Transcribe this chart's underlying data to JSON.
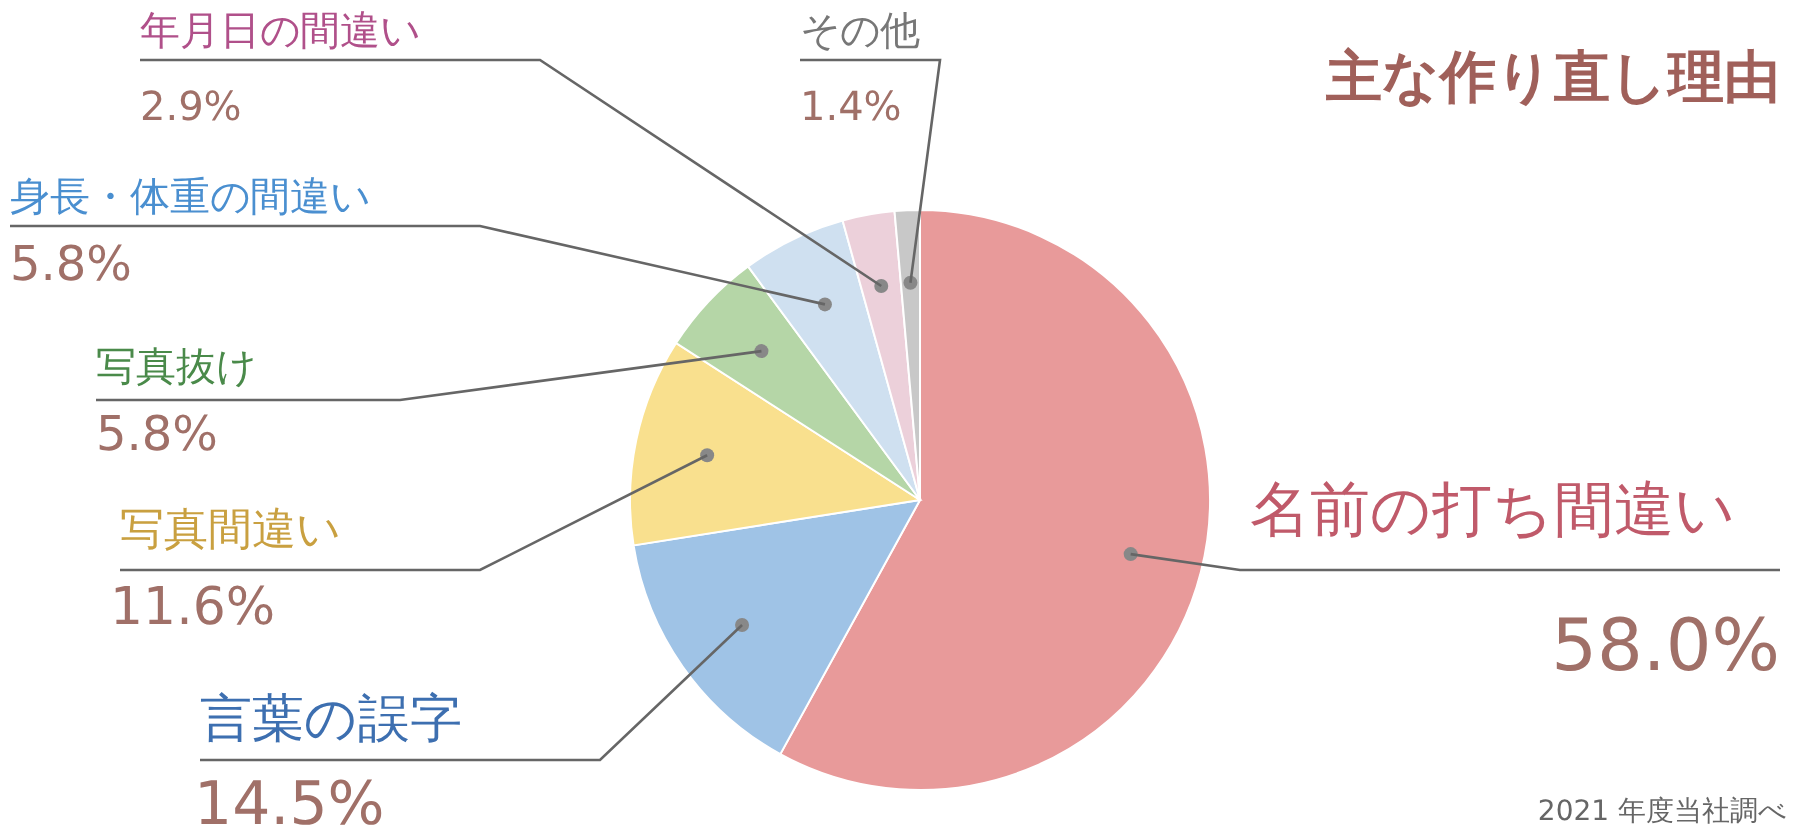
{
  "chart_data": {
    "type": "pie",
    "title": "主な作り直し理由",
    "categories": [
      "名前の打ち間違い",
      "言葉の誤字",
      "写真間違い",
      "写真抜け",
      "身長・体重の間違い",
      "年月日の間違い",
      "その他"
    ],
    "values": [
      58.0,
      14.5,
      11.6,
      5.8,
      5.8,
      2.9,
      1.4
    ],
    "colors": [
      "#e89a9a",
      "#9fc3e6",
      "#f9e08e",
      "#b5d6a7",
      "#cfe0f0",
      "#ecd0da",
      "#c8c8c8"
    ],
    "value_labels": [
      "58.0%",
      "14.5%",
      "11.6%",
      "5.8%",
      "5.8%",
      "2.9%",
      "1.4%"
    ],
    "annotations": [
      "2021 年度当社調べ"
    ]
  }
}
